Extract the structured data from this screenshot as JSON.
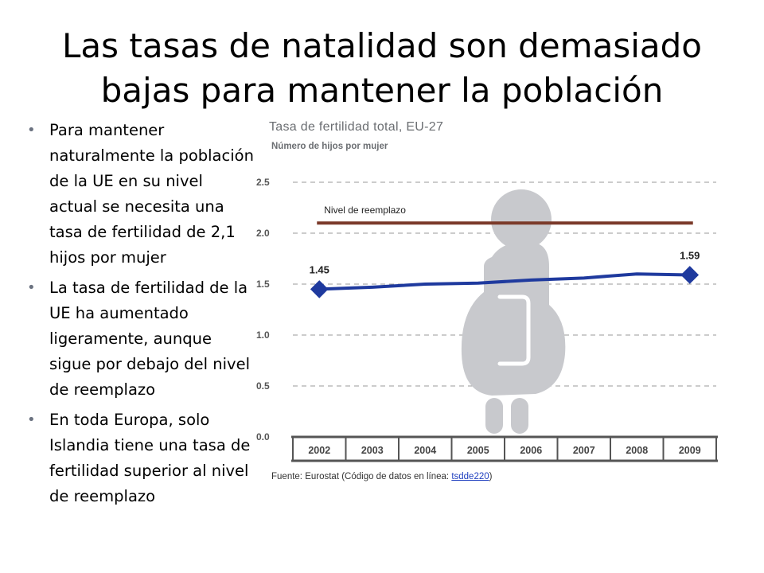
{
  "slide": {
    "title": "Las tasas de natalidad son demasiado bajas para mantener la población",
    "bullets": [
      "Para mantener naturalmente la población de la UE en su nivel actual se necesita una tasa de fertilidad de 2,1 hijos por mujer",
      "La tasa de fertilidad de la UE ha aumentado ligeramente, aunque sigue por debajo del nivel de reemplazo",
      "En toda Europa, solo Islandia tiene una tasa de fertilidad superior al nivel de reemplazo"
    ],
    "bullet_glyph": "•"
  },
  "chart_data": {
    "type": "line",
    "title": "Tasa de fertilidad total, EU-27",
    "ylabel": "Número de hijos por mujer",
    "xlabel": "",
    "categories": [
      "2002",
      "2003",
      "2004",
      "2005",
      "2006",
      "2007",
      "2008",
      "2009"
    ],
    "series": [
      {
        "values": [
          1.45,
          1.47,
          1.5,
          1.51,
          1.54,
          1.56,
          1.6,
          1.59
        ],
        "color": "#1f3a9e"
      }
    ],
    "reference_line": {
      "label": "Nivel de reemplazo",
      "value": 2.1,
      "color": "#7b3a2a"
    },
    "point_labels": [
      {
        "category": "2002",
        "text": "1.45"
      },
      {
        "category": "2009",
        "text": "1.59"
      }
    ],
    "y_ticks": [
      "0.0",
      "0.5",
      "1.0",
      "1.5",
      "2.0",
      "2.5"
    ],
    "ylim": [
      0,
      2.5
    ],
    "grid": true,
    "grid_style": "dashed",
    "background_icon": "pregnant-woman-icon",
    "icon_color": "#c8c9cd",
    "source_text": "Fuente: Eurostat (Código de datos en línea: ",
    "source_link": "tsdde220",
    "source_close": ")"
  }
}
